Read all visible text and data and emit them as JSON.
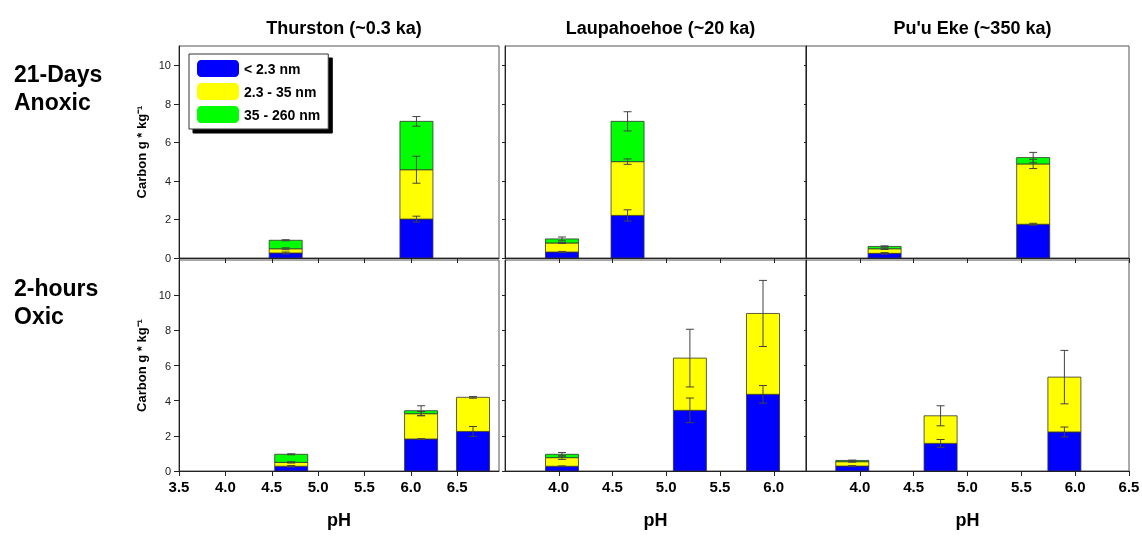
{
  "chart_data": [
    {
      "type": "bar",
      "stacked": true,
      "title": "Thurston (~0.3 ka)",
      "ylabel": "Carbon g * kg⁻¹",
      "annotations": [
        "21-Days Anoxic"
      ],
      "legend": "top left",
      "tick_labels": "y",
      "x": [
        4.65,
        6.06
      ],
      "xlim": [
        3.5,
        6.95
      ],
      "xticks": [
        {
          "value": 3.5,
          "label": "3.5"
        },
        {
          "value": 4,
          "label": "4.0"
        },
        {
          "value": 4.5,
          "label": "4.5"
        },
        {
          "value": 5,
          "label": "5.0"
        },
        {
          "value": 5.5,
          "label": "5.5"
        },
        {
          "value": 6,
          "label": "6.0"
        },
        {
          "value": 6.5,
          "label": "6.5"
        }
      ],
      "ylim": [
        0,
        11
      ],
      "yticks": [
        0,
        2,
        4,
        6,
        8,
        10
      ],
      "series": [
        {
          "name": "< 2.3 nm",
          "color": "#0000ff",
          "values": [
            0.26,
            2.02
          ],
          "errors": [
            0.05,
            0.15
          ]
        },
        {
          "name": "2.3 - 35 nm",
          "color": "#ffff00",
          "values": [
            0.22,
            2.56
          ],
          "errors": [
            0.05,
            0.7
          ]
        },
        {
          "name": "35 - 260 nm",
          "color": "#00ff00",
          "values": [
            0.44,
            2.51
          ],
          "errors": [
            0.03,
            0.25
          ]
        }
      ]
    },
    {
      "type": "bar",
      "stacked": true,
      "title": "Laupahoehoe (~20 ka)",
      "tick_labels": false,
      "x": [
        4.03,
        4.64
      ],
      "xlim": [
        3.5,
        6.3
      ],
      "xticks": [
        {
          "value": 4,
          "label": "4.0"
        },
        {
          "value": 4.5,
          "label": "4.5"
        },
        {
          "value": 5,
          "label": "5.0"
        },
        {
          "value": 5.5,
          "label": "5.5"
        },
        {
          "value": 6,
          "label": "6.0"
        }
      ],
      "ylim": [
        0,
        11
      ],
      "yticks": [
        0,
        2,
        4,
        6,
        8,
        10
      ],
      "series": [
        {
          "color": "#0000ff",
          "values": [
            0.31,
            2.21
          ],
          "errors": [
            0.03,
            0.29
          ]
        },
        {
          "color": "#ffff00",
          "values": [
            0.47,
            2.79
          ],
          "errors": [
            0.03,
            0.14
          ]
        },
        {
          "color": "#00ff00",
          "values": [
            0.21,
            2.09
          ],
          "errors": [
            0.1,
            0.5
          ]
        }
      ]
    },
    {
      "type": "bar",
      "stacked": true,
      "title": "Pu'u Eke (~350 ka)",
      "tick_labels": false,
      "x": [
        4.23,
        5.61
      ],
      "xlim": [
        3.5,
        6.5
      ],
      "xticks": [
        {
          "value": 4,
          "label": "4.0"
        },
        {
          "value": 4.5,
          "label": "4.5"
        },
        {
          "value": 5,
          "label": "5.0"
        },
        {
          "value": 5.5,
          "label": "5.5"
        },
        {
          "value": 6,
          "label": "6.0"
        },
        {
          "value": 6.5,
          "label": "6.5"
        }
      ],
      "ylim": [
        0,
        11
      ],
      "yticks": [
        0,
        2,
        4,
        6,
        8,
        10
      ],
      "series": [
        {
          "color": "#0000ff",
          "values": [
            0.24,
            1.75
          ],
          "errors": [
            0.04,
            0.05
          ]
        },
        {
          "color": "#ffff00",
          "values": [
            0.24,
            3.13
          ],
          "errors": [
            0.04,
            0.24
          ]
        },
        {
          "color": "#00ff00",
          "values": [
            0.12,
            0.33
          ],
          "errors": [
            0.03,
            0.27
          ]
        }
      ]
    },
    {
      "type": "bar",
      "stacked": true,
      "xlabel": "pH",
      "ylabel": "Carbon g * kg⁻¹",
      "annotations": [
        "2-hours Oxic"
      ],
      "x": [
        4.71,
        6.11,
        6.67
      ],
      "xlim": [
        3.5,
        6.95
      ],
      "xticks": [
        {
          "value": 3.5,
          "label": "3.5"
        },
        {
          "value": 4,
          "label": "4.0"
        },
        {
          "value": 4.5,
          "label": "4.5"
        },
        {
          "value": 5,
          "label": "5.0"
        },
        {
          "value": 5.5,
          "label": "5.5"
        },
        {
          "value": 6,
          "label": "6.0"
        },
        {
          "value": 6.5,
          "label": "6.5"
        }
      ],
      "ylim": [
        0,
        12
      ],
      "yticks": [
        0,
        2,
        4,
        6,
        8,
        10
      ],
      "series": [
        {
          "color": "#0000ff",
          "values": [
            0.27,
            1.82,
            2.25
          ],
          "errors": [
            0.04,
            0.02,
            0.28
          ]
        },
        {
          "color": "#ffff00",
          "values": [
            0.22,
            1.44,
            1.94
          ],
          "errors": [
            0.04,
            0.12,
            0.05
          ]
        },
        {
          "color": "#00ff00",
          "values": [
            0.46,
            0.17,
            null
          ],
          "errors": [
            0.03,
            0.28,
            null
          ]
        }
      ]
    },
    {
      "type": "bar",
      "stacked": true,
      "xlabel": "pH",
      "tick_labels": "x",
      "x": [
        4.03,
        5.22,
        5.9
      ],
      "xlim": [
        3.5,
        6.3
      ],
      "xticks": [
        {
          "value": 4,
          "label": "4.0"
        },
        {
          "value": 4.5,
          "label": "4.5"
        },
        {
          "value": 5,
          "label": "5.0"
        },
        {
          "value": 5.5,
          "label": "5.5"
        },
        {
          "value": 6,
          "label": "6.0"
        }
      ],
      "ylim": [
        0,
        12
      ],
      "yticks": [
        0,
        2,
        4,
        6,
        8,
        10
      ],
      "series": [
        {
          "color": "#0000ff",
          "values": [
            0.27,
            3.45,
            4.36
          ],
          "errors": [
            0.02,
            0.7,
            0.5
          ]
        },
        {
          "color": "#ffff00",
          "values": [
            0.49,
            2.97,
            4.6
          ],
          "errors": [
            0.1,
            1.64,
            1.88
          ]
        },
        {
          "color": "#00ff00",
          "values": [
            0.19,
            null,
            null
          ],
          "errors": [
            0.1,
            null,
            null
          ]
        }
      ]
    },
    {
      "type": "bar",
      "stacked": true,
      "xlabel": "pH",
      "tick_labels": "x",
      "x": [
        3.93,
        4.75,
        5.9
      ],
      "xlim": [
        3.5,
        6.5
      ],
      "xticks": [
        {
          "value": 4,
          "label": "4.0"
        },
        {
          "value": 4.5,
          "label": "4.5"
        },
        {
          "value": 5,
          "label": "5.0"
        },
        {
          "value": 5.5,
          "label": "5.5"
        },
        {
          "value": 6,
          "label": "6.0"
        },
        {
          "value": 6.5,
          "label": "6.5"
        }
      ],
      "ylim": [
        0,
        12
      ],
      "yticks": [
        0,
        2,
        4,
        6,
        8,
        10
      ],
      "series": [
        {
          "color": "#0000ff",
          "values": [
            0.28,
            1.57,
            2.22
          ],
          "errors": [
            0.03,
            0.22,
            0.28
          ]
        },
        {
          "color": "#ffff00",
          "values": [
            0.25,
            1.57,
            3.12
          ],
          "errors": [
            0.03,
            0.57,
            1.52
          ]
        },
        {
          "color": "#00ff00",
          "values": [
            0.07,
            null,
            null
          ],
          "errors": [
            0.02,
            null,
            null
          ]
        }
      ]
    }
  ]
}
